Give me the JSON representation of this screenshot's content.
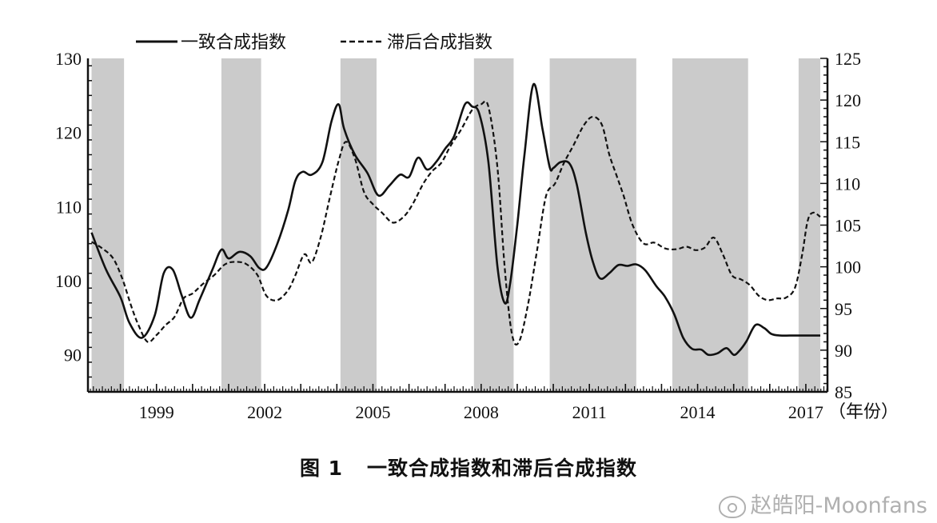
{
  "chart_data": {
    "type": "line",
    "legend": {
      "position": "top",
      "entries": [
        "一致合成指数",
        "滞后合成指数"
      ]
    },
    "xlabel": "（年份）",
    "x_ticks": [
      "1999",
      "2002",
      "2005",
      "2008",
      "2011",
      "2014",
      "2017"
    ],
    "xlim": [
      1997.1,
      2017.6
    ],
    "y_left": {
      "ylim": [
        85,
        130
      ],
      "ticks": [
        "90",
        "100",
        "110",
        "120",
        "130"
      ]
    },
    "y_right": {
      "ylim": [
        85,
        125
      ],
      "ticks": [
        "85",
        "90",
        "95",
        "100",
        "105",
        "110",
        "115",
        "120",
        "125"
      ]
    },
    "shaded_periods": [
      [
        1997.2,
        1998.1
      ],
      [
        2000.8,
        2001.9
      ],
      [
        2004.1,
        2005.1
      ],
      [
        2007.8,
        2008.9
      ],
      [
        2009.9,
        2012.3
      ],
      [
        2013.3,
        2015.4
      ],
      [
        2016.8,
        2017.4
      ]
    ],
    "series": [
      {
        "name": "一致合成指数",
        "axis": "left",
        "style": "solid",
        "x": [
          1997.2,
          1997.6,
          1998.0,
          1998.25,
          1998.6,
          1998.95,
          1999.2,
          1999.45,
          1999.7,
          1999.95,
          2000.2,
          2000.55,
          2000.8,
          2001.0,
          2001.3,
          2001.6,
          2001.85,
          2002.05,
          2002.35,
          2002.65,
          2002.85,
          2003.05,
          2003.3,
          2003.6,
          2003.85,
          2004.05,
          2004.2,
          2004.5,
          2004.85,
          2005.15,
          2005.45,
          2005.75,
          2006.0,
          2006.25,
          2006.5,
          2006.75,
          2007.0,
          2007.25,
          2007.55,
          2007.75,
          2007.95,
          2008.2,
          2008.45,
          2008.65,
          2008.8,
          2009.0,
          2009.2,
          2009.45,
          2009.7,
          2009.9,
          2010.0,
          2010.2,
          2010.45,
          2010.65,
          2010.9,
          2011.1,
          2011.3,
          2011.55,
          2011.8,
          2012.05,
          2012.3,
          2012.55,
          2012.85,
          2013.1,
          2013.35,
          2013.6,
          2013.85,
          2014.1,
          2014.3,
          2014.55,
          2014.8,
          2015.0,
          2015.15,
          2015.35,
          2015.6,
          2015.85,
          2016.05,
          2016.3,
          2016.55,
          2016.8,
          2017.0,
          2017.2,
          2017.4
        ],
        "values": [
          106.5,
          101.5,
          97.8,
          94.3,
          92.3,
          95.3,
          101.0,
          101.5,
          98.0,
          95.0,
          97.5,
          101.5,
          104.2,
          103.0,
          103.9,
          103.3,
          101.7,
          101.8,
          105.0,
          109.5,
          113.5,
          114.7,
          114.3,
          116.0,
          121.5,
          123.8,
          120.5,
          117.0,
          114.5,
          111.5,
          112.8,
          114.3,
          114.0,
          116.6,
          115.0,
          116.0,
          117.8,
          119.5,
          123.8,
          123.5,
          122.5,
          116.0,
          102.0,
          97.0,
          99.5,
          107.5,
          117.0,
          126.5,
          120.5,
          115.3,
          115.2,
          116.0,
          115.8,
          113.0,
          106.5,
          102.5,
          100.3,
          101.0,
          102.1,
          102.0,
          102.2,
          101.4,
          99.3,
          97.8,
          95.5,
          92.3,
          90.8,
          90.7,
          90.0,
          90.2,
          90.9,
          90.0,
          90.5,
          91.8,
          94.0,
          93.6,
          92.8,
          92.6,
          92.6,
          92.6,
          92.6,
          92.6,
          92.6
        ]
      },
      {
        "name": "滞后合成指数",
        "axis": "right",
        "style": "dashed",
        "x": [
          1997.2,
          1997.5,
          1997.8,
          1998.05,
          1998.3,
          1998.5,
          1998.75,
          1999.0,
          1999.25,
          1999.5,
          1999.75,
          2000.0,
          2000.3,
          2000.6,
          2000.9,
          2001.2,
          2001.5,
          2001.8,
          2002.05,
          2002.35,
          2002.65,
          2002.85,
          2003.1,
          2003.3,
          2003.55,
          2003.8,
          2004.05,
          2004.25,
          2004.5,
          2004.75,
          2005.0,
          2005.25,
          2005.55,
          2005.85,
          2006.1,
          2006.4,
          2006.65,
          2006.9,
          2007.15,
          2007.45,
          2007.75,
          2008.0,
          2008.2,
          2008.45,
          2008.65,
          2008.85,
          2009.05,
          2009.3,
          2009.55,
          2009.8,
          2010.05,
          2010.3,
          2010.55,
          2010.85,
          2011.1,
          2011.35,
          2011.55,
          2011.75,
          2011.95,
          2012.2,
          2012.5,
          2012.8,
          2013.1,
          2013.4,
          2013.7,
          2013.95,
          2014.2,
          2014.45,
          2014.7,
          2014.95,
          2015.2,
          2015.45,
          2015.7,
          2015.95,
          2016.2,
          2016.45,
          2016.7,
          2016.9,
          2017.05,
          2017.2,
          2017.4
        ],
        "values": [
          103.0,
          102.2,
          101.0,
          98.6,
          95.3,
          93.0,
          91.0,
          91.8,
          93.0,
          94.0,
          96.2,
          96.8,
          98.0,
          99.0,
          100.3,
          100.6,
          100.3,
          99.0,
          96.5,
          96.0,
          97.2,
          99.0,
          101.5,
          100.5,
          103.5,
          108.2,
          112.7,
          115.0,
          113.0,
          109.0,
          107.5,
          106.5,
          105.3,
          106.0,
          107.5,
          110.0,
          111.5,
          112.5,
          114.5,
          116.5,
          118.8,
          119.5,
          119.2,
          112.0,
          100.0,
          92.0,
          91.0,
          95.5,
          102.0,
          108.5,
          110.0,
          112.5,
          114.5,
          117.0,
          118.0,
          117.0,
          113.5,
          111.0,
          108.5,
          105.0,
          102.8,
          102.9,
          102.2,
          102.1,
          102.4,
          102.0,
          102.3,
          103.5,
          101.5,
          99.0,
          98.5,
          97.8,
          96.5,
          96.0,
          96.2,
          96.3,
          97.5,
          101.5,
          105.5,
          106.5,
          106.0
        ]
      }
    ]
  },
  "caption": {
    "figure_number": "图 1",
    "title": "一致合成指数和滞后合成指数"
  },
  "watermark": {
    "text": "赵皓阳-Moonfans"
  }
}
